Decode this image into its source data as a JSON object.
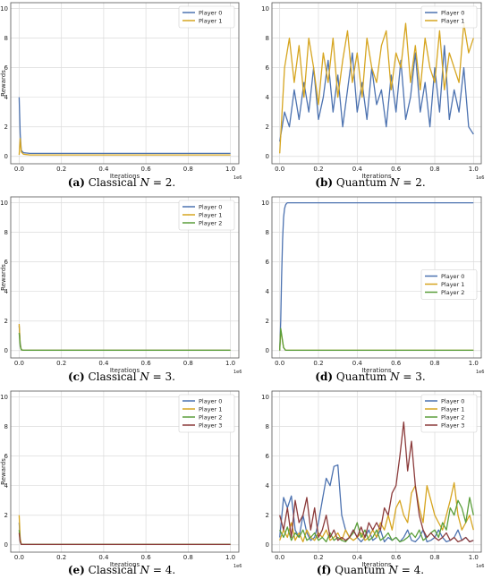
{
  "chart_data": [
    {
      "id": "a",
      "type": "line",
      "caption": {
        "letter": "(a)",
        "text": " Classical ",
        "var": "N",
        "eq": " = 2."
      },
      "xlabel": "Iterations",
      "ylabel": "Rewards",
      "x_multiplier": "1e6",
      "xlim": [
        -0.04,
        1.04
      ],
      "ylim": [
        -0.5,
        10.4
      ],
      "xticks": [
        "0.0",
        "0.2",
        "0.4",
        "0.6",
        "0.8",
        "1.0"
      ],
      "yticks": [
        "0",
        "2",
        "4",
        "6",
        "8",
        "10"
      ],
      "grid": true,
      "legend": "top-right",
      "series": [
        {
          "name": "Player 0",
          "color": "#4c72b0",
          "x": [
            0,
            0.005,
            0.01,
            0.02,
            0.05,
            1.0
          ],
          "y": [
            4.0,
            1.5,
            0.4,
            0.25,
            0.2,
            0.2
          ]
        },
        {
          "name": "Player 1",
          "color": "#d6a520",
          "x": [
            0,
            0.005,
            0.01,
            0.02,
            0.05,
            1.0
          ],
          "y": [
            0.1,
            1.2,
            0.3,
            0.15,
            0.1,
            0.1
          ]
        }
      ]
    },
    {
      "id": "b",
      "type": "line",
      "caption": {
        "letter": "(b)",
        "text": " Quantum ",
        "var": "N",
        "eq": " = 2."
      },
      "xlabel": "Iterations",
      "ylabel": "",
      "x_multiplier": "1e6",
      "xlim": [
        -0.04,
        1.04
      ],
      "ylim": [
        -0.5,
        10.4
      ],
      "xticks": [
        "0.0",
        "0.2",
        "0.4",
        "0.6",
        "0.8",
        "1.0"
      ],
      "yticks": [
        "0",
        "2",
        "4",
        "6",
        "8",
        "10"
      ],
      "grid": true,
      "legend": "top-right",
      "series": [
        {
          "name": "Player 0",
          "color": "#4c72b0",
          "x": [
            0,
            0.025,
            0.05,
            0.075,
            0.1,
            0.125,
            0.15,
            0.175,
            0.2,
            0.225,
            0.25,
            0.275,
            0.3,
            0.325,
            0.35,
            0.375,
            0.4,
            0.425,
            0.45,
            0.475,
            0.5,
            0.525,
            0.55,
            0.575,
            0.6,
            0.625,
            0.65,
            0.675,
            0.7,
            0.725,
            0.75,
            0.775,
            0.8,
            0.825,
            0.85,
            0.875,
            0.9,
            0.925,
            0.95,
            0.975,
            1.0
          ],
          "y": [
            1.0,
            3.0,
            2.0,
            4.5,
            2.5,
            5.0,
            3.0,
            6.0,
            2.5,
            4.0,
            6.5,
            3.0,
            5.5,
            2.0,
            4.5,
            7.0,
            3.0,
            5.0,
            2.5,
            6.0,
            3.5,
            4.5,
            2.0,
            5.5,
            3.0,
            6.5,
            2.5,
            4.0,
            7.0,
            3.0,
            5.0,
            2.0,
            6.0,
            3.0,
            7.5,
            2.5,
            4.5,
            3.0,
            6.0,
            2.0,
            1.5
          ]
        },
        {
          "name": "Player 1",
          "color": "#d6a520",
          "x": [
            0,
            0.025,
            0.05,
            0.075,
            0.1,
            0.125,
            0.15,
            0.175,
            0.2,
            0.225,
            0.25,
            0.275,
            0.3,
            0.325,
            0.35,
            0.375,
            0.4,
            0.425,
            0.45,
            0.475,
            0.5,
            0.525,
            0.55,
            0.575,
            0.6,
            0.625,
            0.65,
            0.675,
            0.7,
            0.725,
            0.75,
            0.775,
            0.8,
            0.825,
            0.85,
            0.875,
            0.9,
            0.925,
            0.95,
            0.975,
            1.0
          ],
          "y": [
            0.2,
            6.0,
            8.0,
            5.0,
            7.5,
            4.0,
            8.0,
            6.0,
            3.5,
            7.0,
            5.0,
            8.0,
            4.0,
            6.5,
            8.5,
            5.0,
            7.0,
            4.0,
            8.0,
            6.0,
            5.0,
            7.5,
            8.5,
            4.5,
            7.0,
            6.0,
            9.0,
            5.0,
            7.5,
            4.5,
            8.0,
            6.0,
            5.0,
            8.5,
            4.5,
            7.0,
            6.0,
            5.0,
            9.0,
            7.0,
            8.0
          ]
        }
      ]
    },
    {
      "id": "c",
      "type": "line",
      "caption": {
        "letter": "(c)",
        "text": " Classical ",
        "var": "N",
        "eq": " = 3."
      },
      "xlabel": "Iterations",
      "ylabel": "Rewards",
      "x_multiplier": "1e6",
      "xlim": [
        -0.04,
        1.04
      ],
      "ylim": [
        -0.5,
        10.4
      ],
      "xticks": [
        "0.0",
        "0.2",
        "0.4",
        "0.6",
        "0.8",
        "1.0"
      ],
      "yticks": [
        "0",
        "2",
        "4",
        "6",
        "8",
        "10"
      ],
      "grid": true,
      "legend": "top-right",
      "series": [
        {
          "name": "Player 0",
          "color": "#4c72b0",
          "x": [
            0,
            0.005,
            0.01,
            0.02,
            1.0
          ],
          "y": [
            1.7,
            0.5,
            0.05,
            0.02,
            0.02
          ]
        },
        {
          "name": "Player 1",
          "color": "#d6a520",
          "x": [
            0,
            0.005,
            0.01,
            0.02,
            1.0
          ],
          "y": [
            1.8,
            0.4,
            0.05,
            0.02,
            0.02
          ]
        },
        {
          "name": "Player 2",
          "color": "#5a9e3a",
          "x": [
            0,
            0.005,
            0.01,
            0.02,
            1.0
          ],
          "y": [
            1.2,
            0.3,
            0.05,
            0.02,
            0.02
          ]
        }
      ]
    },
    {
      "id": "d",
      "type": "line",
      "caption": {
        "letter": "(d)",
        "text": " Quantum ",
        "var": "N",
        "eq": " = 3."
      },
      "xlabel": "Iterations",
      "ylabel": "",
      "x_multiplier": "1e6",
      "xlim": [
        -0.04,
        1.04
      ],
      "ylim": [
        -0.5,
        10.4
      ],
      "xticks": [
        "0.0",
        "0.2",
        "0.4",
        "0.6",
        "0.8",
        "1.0"
      ],
      "yticks": [
        "0",
        "2",
        "4",
        "6",
        "8",
        "10"
      ],
      "grid": true,
      "legend": "center-right",
      "series": [
        {
          "name": "Player 0",
          "color": "#4c72b0",
          "x": [
            0,
            0.005,
            0.01,
            0.015,
            0.02,
            0.025,
            0.03,
            0.035,
            0.04,
            1.0
          ],
          "y": [
            0.0,
            2.0,
            5.0,
            7.5,
            9.0,
            9.6,
            9.85,
            9.95,
            10.0,
            10.0
          ]
        },
        {
          "name": "Player 1",
          "color": "#d6a520",
          "x": [
            0,
            0.005,
            0.01,
            0.02,
            0.03,
            1.0
          ],
          "y": [
            0.0,
            1.4,
            1.0,
            0.2,
            0.02,
            0.02
          ]
        },
        {
          "name": "Player 2",
          "color": "#5a9e3a",
          "x": [
            0,
            0.005,
            0.01,
            0.02,
            0.03,
            1.0
          ],
          "y": [
            0.0,
            1.5,
            1.1,
            0.2,
            0.02,
            0.02
          ]
        }
      ]
    },
    {
      "id": "e",
      "type": "line",
      "caption": {
        "letter": "(e)",
        "text": " Classical ",
        "var": "N",
        "eq": " = 4."
      },
      "xlabel": "Iterations",
      "ylabel": "Rewards",
      "x_multiplier": "1e6",
      "xlim": [
        -0.04,
        1.04
      ],
      "ylim": [
        -0.5,
        10.4
      ],
      "xticks": [
        "0.0",
        "0.2",
        "0.4",
        "0.6",
        "0.8",
        "1.0"
      ],
      "yticks": [
        "0",
        "2",
        "4",
        "6",
        "8",
        "10"
      ],
      "grid": true,
      "legend": "top-right",
      "series": [
        {
          "name": "Player 0",
          "color": "#4c72b0",
          "x": [
            0,
            0.005,
            0.01,
            1.0
          ],
          "y": [
            1.5,
            0.3,
            0.02,
            0.02
          ]
        },
        {
          "name": "Player 1",
          "color": "#d6a520",
          "x": [
            0,
            0.005,
            0.01,
            1.0
          ],
          "y": [
            2.0,
            0.4,
            0.02,
            0.02
          ]
        },
        {
          "name": "Player 2",
          "color": "#5a9e3a",
          "x": [
            0,
            0.005,
            0.01,
            1.0
          ],
          "y": [
            1.0,
            0.2,
            0.02,
            0.02
          ]
        },
        {
          "name": "Player 3",
          "color": "#8b3a3a",
          "x": [
            0,
            0.005,
            0.01,
            1.0
          ],
          "y": [
            0.8,
            0.2,
            0.02,
            0.02
          ]
        }
      ]
    },
    {
      "id": "f",
      "type": "line",
      "caption": {
        "letter": "(f)",
        "text": " Quantum ",
        "var": "N",
        "eq": " = 4."
      },
      "xlabel": "Iterations",
      "ylabel": "",
      "x_multiplier": "1e6",
      "xlim": [
        -0.04,
        1.04
      ],
      "ylim": [
        -0.5,
        10.4
      ],
      "xticks": [
        "0.0",
        "0.2",
        "0.4",
        "0.6",
        "0.8",
        "1.0"
      ],
      "yticks": [
        "0",
        "2",
        "4",
        "6",
        "8",
        "10"
      ],
      "grid": true,
      "legend": "top-right",
      "series": [
        {
          "name": "Player 0",
          "color": "#4c72b0",
          "x": [
            0,
            0.02,
            0.04,
            0.06,
            0.08,
            0.1,
            0.12,
            0.14,
            0.16,
            0.18,
            0.2,
            0.22,
            0.24,
            0.26,
            0.28,
            0.3,
            0.32,
            0.34,
            0.36,
            0.38,
            0.4,
            0.42,
            0.44,
            0.46,
            0.48,
            0.5,
            0.52,
            0.54,
            0.56,
            0.58,
            0.6,
            0.62,
            0.64,
            0.66,
            0.68,
            0.7,
            0.72,
            0.74,
            0.76,
            0.78,
            0.8,
            0.82,
            0.84,
            0.86,
            0.88,
            0.9,
            0.92,
            0.94,
            0.96,
            0.98,
            1.0
          ],
          "y": [
            0.5,
            3.2,
            2.5,
            3.3,
            1.0,
            0.5,
            2.0,
            0.8,
            0.3,
            0.5,
            1.5,
            3.0,
            4.5,
            4.0,
            5.3,
            5.4,
            2.0,
            1.0,
            0.5,
            1.0,
            0.5,
            0.2,
            0.5,
            1.0,
            0.3,
            0.5,
            1.0,
            0.2,
            0.5,
            0.3,
            0.5,
            0.2,
            0.5,
            1.0,
            0.3,
            0.2,
            0.5,
            1.0,
            0.2,
            0.3,
            0.5,
            1.0,
            0.5,
            0.2,
            0.3,
            0.5,
            1.0,
            0.3,
            0.5,
            0.2,
            0.3
          ]
        },
        {
          "name": "Player 1",
          "color": "#d6a520",
          "x": [
            0,
            0.02,
            0.04,
            0.06,
            0.08,
            0.1,
            0.12,
            0.14,
            0.16,
            0.18,
            0.2,
            0.22,
            0.24,
            0.26,
            0.28,
            0.3,
            0.32,
            0.34,
            0.36,
            0.38,
            0.4,
            0.42,
            0.44,
            0.46,
            0.48,
            0.5,
            0.52,
            0.54,
            0.56,
            0.58,
            0.6,
            0.62,
            0.64,
            0.66,
            0.68,
            0.7,
            0.72,
            0.74,
            0.76,
            0.78,
            0.8,
            0.82,
            0.84,
            0.86,
            0.88,
            0.9,
            0.92,
            0.94,
            0.96,
            0.98,
            1.0
          ],
          "y": [
            0.3,
            1.0,
            0.5,
            1.5,
            0.3,
            0.8,
            0.2,
            1.0,
            0.5,
            0.3,
            0.8,
            0.5,
            1.0,
            0.3,
            0.5,
            0.8,
            0.3,
            1.0,
            0.5,
            0.3,
            0.5,
            0.8,
            0.3,
            0.5,
            1.0,
            0.5,
            1.5,
            1.0,
            2.0,
            1.0,
            2.5,
            3.0,
            2.0,
            1.5,
            3.5,
            4.0,
            2.5,
            1.5,
            4.0,
            3.0,
            2.0,
            1.5,
            1.0,
            2.0,
            3.0,
            4.2,
            2.0,
            1.0,
            1.5,
            2.0,
            1.0
          ]
        },
        {
          "name": "Player 2",
          "color": "#5a9e3a",
          "x": [
            0,
            0.02,
            0.04,
            0.06,
            0.08,
            0.1,
            0.12,
            0.14,
            0.16,
            0.18,
            0.2,
            0.22,
            0.24,
            0.26,
            0.28,
            0.3,
            0.32,
            0.34,
            0.36,
            0.38,
            0.4,
            0.42,
            0.44,
            0.46,
            0.48,
            0.5,
            0.52,
            0.54,
            0.56,
            0.58,
            0.6,
            0.62,
            0.64,
            0.66,
            0.68,
            0.7,
            0.72,
            0.74,
            0.76,
            0.78,
            0.8,
            0.82,
            0.84,
            0.86,
            0.88,
            0.9,
            0.92,
            0.94,
            0.96,
            0.98,
            1.0
          ],
          "y": [
            1.0,
            0.5,
            1.2,
            0.3,
            0.8,
            0.5,
            1.0,
            0.3,
            0.5,
            0.8,
            0.3,
            0.5,
            0.2,
            0.8,
            0.3,
            0.5,
            0.3,
            0.2,
            0.5,
            0.8,
            1.5,
            0.5,
            1.0,
            0.3,
            0.5,
            1.0,
            0.3,
            0.5,
            0.8,
            0.3,
            0.5,
            0.2,
            0.3,
            0.5,
            0.8,
            0.5,
            1.0,
            0.3,
            0.5,
            0.8,
            1.0,
            0.5,
            1.5,
            1.0,
            2.5,
            2.0,
            3.0,
            2.5,
            1.5,
            3.2,
            2.0
          ]
        },
        {
          "name": "Player 3",
          "color": "#8b3a3a",
          "x": [
            0,
            0.02,
            0.04,
            0.06,
            0.08,
            0.1,
            0.12,
            0.14,
            0.16,
            0.18,
            0.2,
            0.22,
            0.24,
            0.26,
            0.28,
            0.3,
            0.32,
            0.34,
            0.36,
            0.38,
            0.4,
            0.42,
            0.44,
            0.46,
            0.48,
            0.5,
            0.52,
            0.54,
            0.56,
            0.58,
            0.6,
            0.62,
            0.64,
            0.66,
            0.68,
            0.7,
            0.72,
            0.74,
            0.76,
            0.78,
            0.8,
            0.82,
            0.84,
            0.86,
            0.88,
            0.9,
            0.92,
            0.94,
            0.96,
            0.98,
            1.0
          ],
          "y": [
            2.0,
            1.0,
            2.5,
            0.5,
            3.0,
            1.5,
            2.0,
            3.2,
            1.0,
            2.5,
            0.5,
            1.0,
            2.0,
            0.5,
            1.0,
            0.3,
            0.5,
            0.3,
            0.5,
            1.0,
            0.5,
            1.2,
            0.5,
            1.5,
            1.0,
            1.5,
            1.0,
            2.5,
            2.0,
            3.5,
            4.0,
            6.0,
            8.3,
            5.0,
            7.0,
            4.0,
            2.0,
            1.0,
            0.5,
            0.8,
            0.5,
            0.3,
            0.5,
            0.8,
            0.3,
            0.5,
            0.2,
            0.3,
            0.5,
            0.2,
            0.3
          ]
        }
      ]
    }
  ]
}
